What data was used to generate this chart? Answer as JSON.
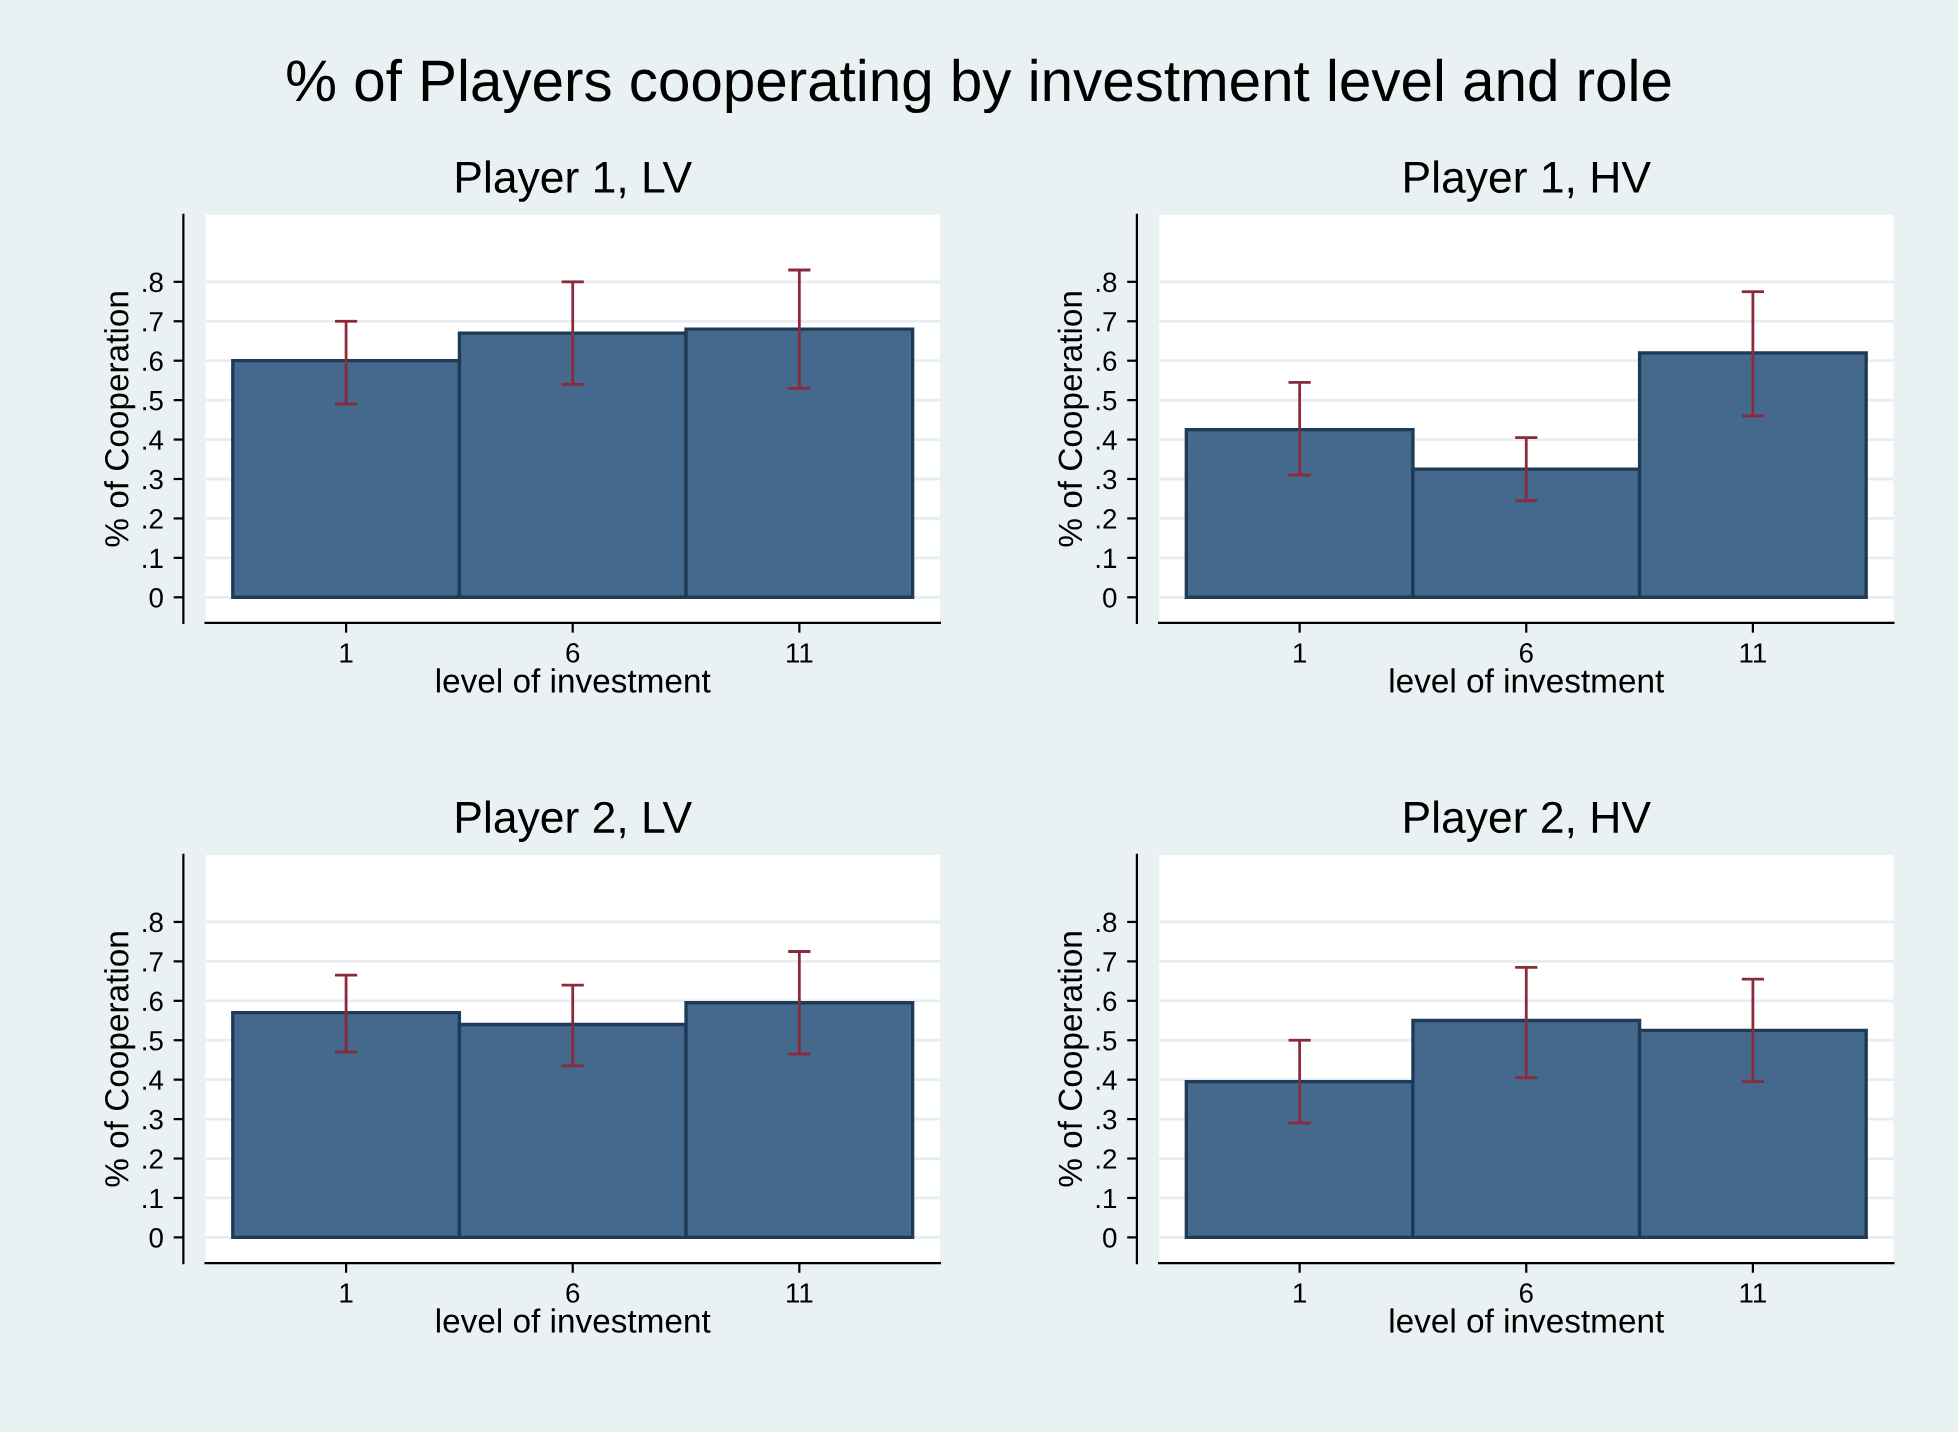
{
  "chart_data": [
    {
      "type": "bar",
      "title": "Player 1, LV",
      "annotations": [
        "% of Players cooperating by investment level and role"
      ],
      "xlabel": "level of investment",
      "ylabel": "% of Cooperation",
      "categories": [
        "1",
        "6",
        "11"
      ],
      "series": [
        {
          "color": "#44698c",
          "values": [
            0.6,
            0.67,
            0.68
          ],
          "errors": [
            [
              0.49,
              0.7
            ],
            [
              0.54,
              0.8
            ],
            [
              0.53,
              0.83
            ]
          ]
        }
      ],
      "ylim": [
        -0.065,
        0.97
      ],
      "yticks": [
        0,
        {
          "value": 0.1,
          "label": ".1"
        },
        {
          "value": 0.2,
          "label": ".2"
        },
        {
          "value": 0.3,
          "label": ".3"
        },
        {
          "value": 0.4,
          "label": ".4"
        },
        {
          "value": 0.5,
          "label": ".5"
        },
        {
          "value": 0.6,
          "label": ".6"
        },
        {
          "value": 0.7,
          "label": ".7"
        },
        {
          "value": 0.8,
          "label": ".8"
        }
      ],
      "grid": "y"
    },
    {
      "type": "bar",
      "title": "Player 1, HV",
      "xlabel": "level of investment",
      "ylabel": "% of Cooperation",
      "categories": [
        "1",
        "6",
        "11"
      ],
      "series": [
        {
          "color": "#44698c",
          "values": [
            0.425,
            0.325,
            0.62
          ],
          "errors": [
            [
              0.31,
              0.545
            ],
            [
              0.245,
              0.405
            ],
            [
              0.46,
              0.775
            ]
          ]
        }
      ],
      "ylim": [
        -0.065,
        0.97
      ],
      "yticks": [
        0,
        {
          "value": 0.1,
          "label": ".1"
        },
        {
          "value": 0.2,
          "label": ".2"
        },
        {
          "value": 0.3,
          "label": ".3"
        },
        {
          "value": 0.4,
          "label": ".4"
        },
        {
          "value": 0.5,
          "label": ".5"
        },
        {
          "value": 0.6,
          "label": ".6"
        },
        {
          "value": 0.7,
          "label": ".7"
        },
        {
          "value": 0.8,
          "label": ".8"
        }
      ],
      "grid": "y"
    },
    {
      "type": "bar",
      "title": "Player 2, LV",
      "xlabel": "level of investment",
      "ylabel": "% of Cooperation",
      "categories": [
        "1",
        "6",
        "11"
      ],
      "series": [
        {
          "color": "#44698c",
          "values": [
            0.57,
            0.54,
            0.595
          ],
          "errors": [
            [
              0.47,
              0.665
            ],
            [
              0.435,
              0.64
            ],
            [
              0.465,
              0.725
            ]
          ]
        }
      ],
      "ylim": [
        -0.065,
        0.97
      ],
      "yticks": [
        0,
        {
          "value": 0.1,
          "label": ".1"
        },
        {
          "value": 0.2,
          "label": ".2"
        },
        {
          "value": 0.3,
          "label": ".3"
        },
        {
          "value": 0.4,
          "label": ".4"
        },
        {
          "value": 0.5,
          "label": ".5"
        },
        {
          "value": 0.6,
          "label": ".6"
        },
        {
          "value": 0.7,
          "label": ".7"
        },
        {
          "value": 0.8,
          "label": ".8"
        }
      ],
      "grid": "y"
    },
    {
      "type": "bar",
      "title": "Player 2, HV",
      "xlabel": "level of investment",
      "ylabel": "% of Cooperation",
      "categories": [
        "1",
        "6",
        "11"
      ],
      "series": [
        {
          "color": "#44698c",
          "values": [
            0.395,
            0.55,
            0.525
          ],
          "errors": [
            [
              0.29,
              0.5
            ],
            [
              0.405,
              0.685
            ],
            [
              0.395,
              0.655
            ]
          ]
        }
      ],
      "ylim": [
        -0.065,
        0.97
      ],
      "yticks": [
        0,
        {
          "value": 0.1,
          "label": ".1"
        },
        {
          "value": 0.2,
          "label": ".2"
        },
        {
          "value": 0.3,
          "label": ".3"
        },
        {
          "value": 0.4,
          "label": ".4"
        },
        {
          "value": 0.5,
          "label": ".5"
        },
        {
          "value": 0.6,
          "label": ".6"
        },
        {
          "value": 0.7,
          "label": ".7"
        },
        {
          "value": 0.8,
          "label": ".8"
        }
      ],
      "grid": "y"
    }
  ]
}
